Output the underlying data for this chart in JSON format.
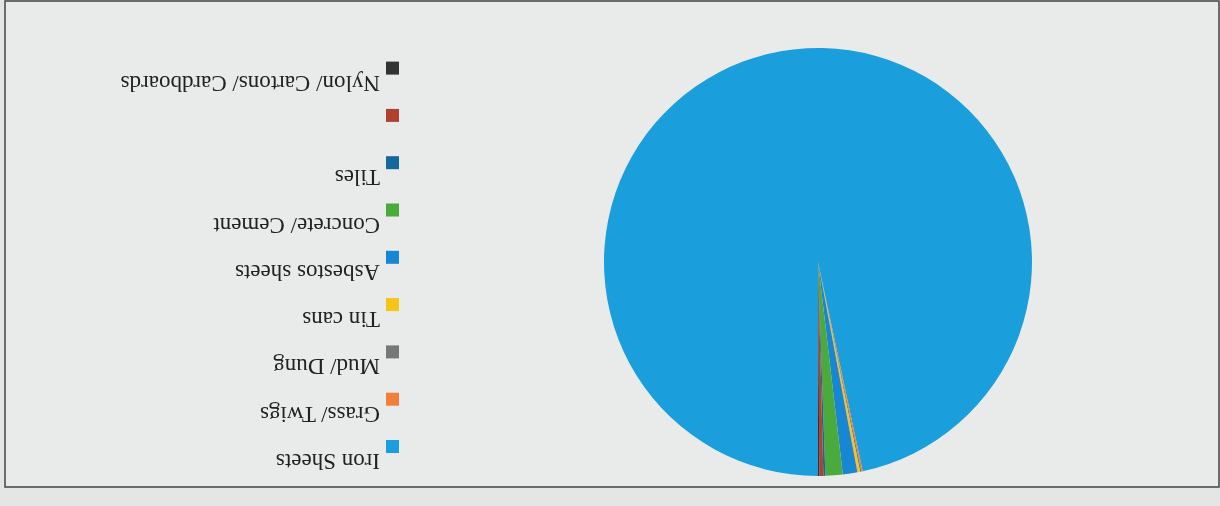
{
  "chart_data": {
    "type": "pie",
    "categories": [
      "Iron Sheets",
      "Grass/ Twigs",
      "Mud/ Dung",
      "Tin cans",
      "Asbestos sheets",
      "Concrete/ Cement",
      "Tiles",
      null,
      "Nylon/ Cartons/ Cardboards"
    ],
    "values": [
      96.65,
      0.1,
      0.1,
      0.2,
      1.1,
      1.3,
      0.15,
      0.3,
      0.1
    ],
    "colors": [
      "#1a9fdc",
      "#f07f3c",
      "#777777",
      "#f5c518",
      "#1787d4",
      "#4aaa3c",
      "#13699a",
      "#b0402f",
      "#333333"
    ],
    "legend": "left"
  }
}
